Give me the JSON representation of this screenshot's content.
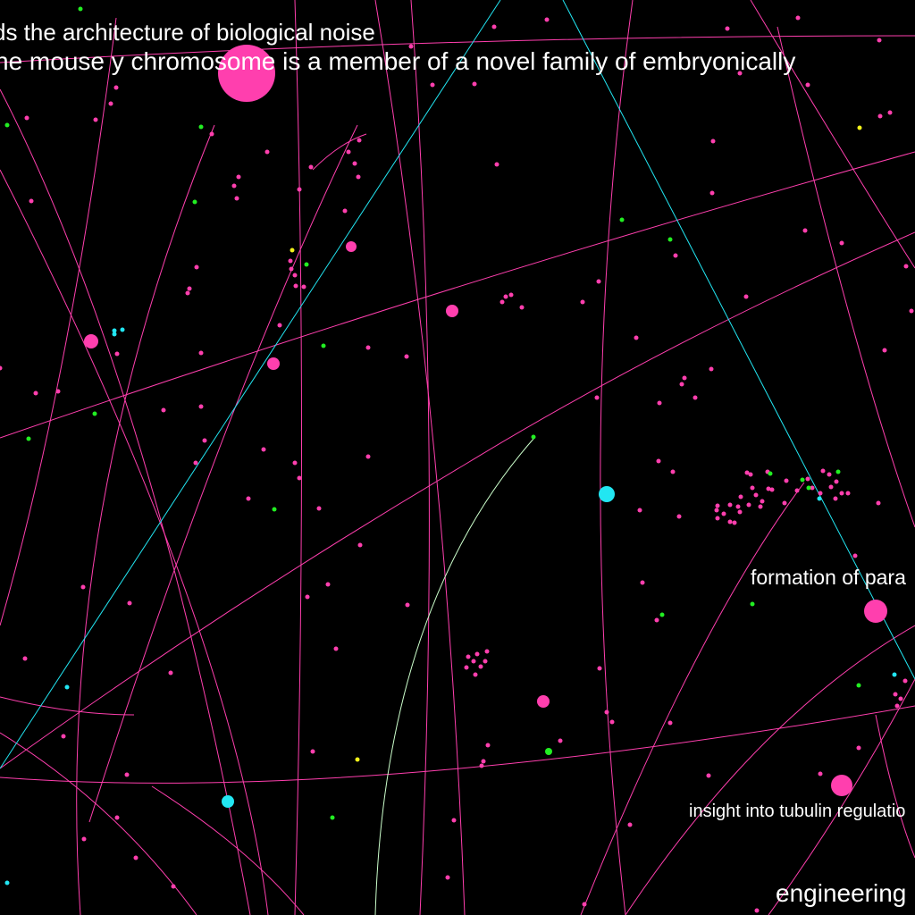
{
  "colors": {
    "background": "#000000",
    "magenta": "#ff3fae",
    "cyan": "#22e6f2",
    "green": "#22ee22",
    "yellow": "#f2f21a",
    "pale_green": "#ccffcc",
    "white": "#ffffff"
  },
  "labels": [
    {
      "id": "biological-noise",
      "text": "ds the architecture of biological noise"
    },
    {
      "id": "mouse-y-chromosome",
      "text": "he mouse y chromosome is a member of a novel family of embryonically"
    },
    {
      "id": "formation",
      "text": "formation of para"
    },
    {
      "id": "tubulin",
      "text": "insight into tubulin regulatio"
    },
    {
      "id": "engineering",
      "text": "engineering"
    }
  ]
}
